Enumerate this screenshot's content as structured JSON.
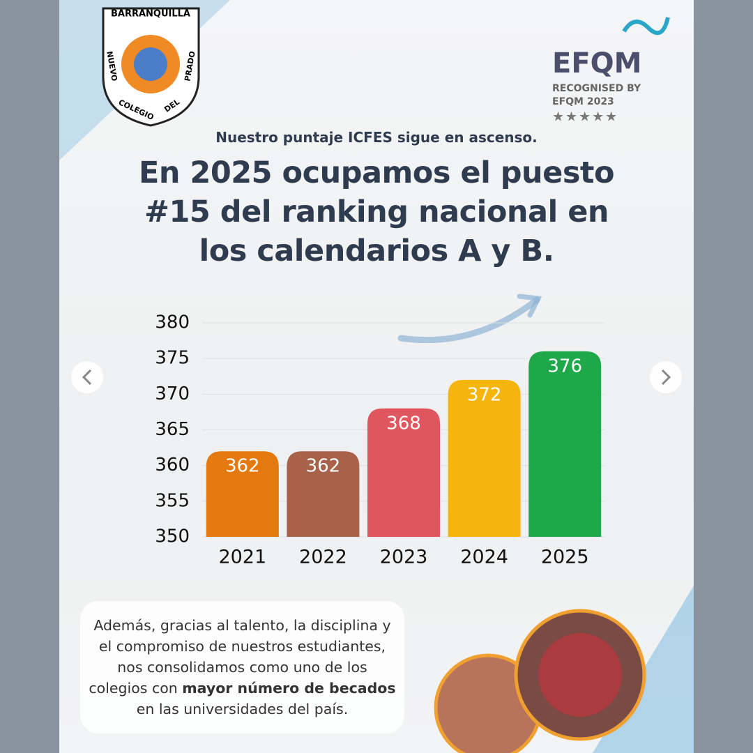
{
  "logo": {
    "top": "BARRANQUILLA",
    "left": "NUEVO",
    "bottom_left": "COLEGIO",
    "bottom_right": "DEL",
    "right": "PRADO"
  },
  "badge": {
    "name": "EFQM",
    "line1": "RECOGNISED BY",
    "line2": "EFQM 2023"
  },
  "subtitle": "Nuestro puntaje ICFES sigue en ascenso.",
  "headline": "En 2025 ocupamos el puesto #15 del ranking nacional en los calendarios A y B.",
  "note": {
    "before": "Además, gracias al talento, la disciplina y el compromiso de nuestros estudiantes, nos consolidamos como uno de los colegios con ",
    "bold": "mayor número de becados",
    "after": " en las universidades del país."
  },
  "chart_data": {
    "type": "bar",
    "categories": [
      "2021",
      "2022",
      "2023",
      "2024",
      "2025"
    ],
    "values": [
      362,
      362,
      368,
      372,
      376
    ],
    "colors": [
      "#e47a0f",
      "#a9624a",
      "#e0565f",
      "#f5b50d",
      "#1fa84a"
    ],
    "ylim": [
      350,
      380
    ],
    "yticks": [
      350,
      355,
      360,
      365,
      370,
      375,
      380
    ],
    "grid": true
  }
}
